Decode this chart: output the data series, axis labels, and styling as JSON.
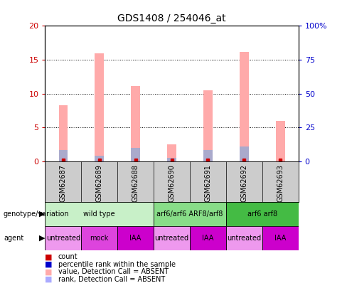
{
  "title": "GDS1408 / 254046_at",
  "samples": [
    "GSM62687",
    "GSM62689",
    "GSM62688",
    "GSM62690",
    "GSM62691",
    "GSM62692",
    "GSM62693"
  ],
  "pink_bars": [
    8.3,
    16.0,
    11.1,
    2.5,
    10.5,
    16.2,
    6.0
  ],
  "blue_bars": [
    1.7,
    0.8,
    2.0,
    0.5,
    1.7,
    2.2,
    0.0
  ],
  "red_dots": [
    0.15,
    0.15,
    0.15,
    0.15,
    0.15,
    0.15,
    0.15
  ],
  "ylim_left": [
    0,
    20
  ],
  "ylim_right": [
    0,
    100
  ],
  "yticks_left": [
    0,
    5,
    10,
    15,
    20
  ],
  "yticks_right": [
    0,
    25,
    50,
    75,
    100
  ],
  "ytick_labels_left": [
    "0",
    "5",
    "10",
    "15",
    "20"
  ],
  "ytick_labels_right": [
    "0",
    "25",
    "50",
    "75",
    "100%"
  ],
  "genotype_groups": [
    {
      "label": "wild type",
      "start": 0,
      "end": 3,
      "color": "#c8f0c8"
    },
    {
      "label": "arf6/arf6 ARF8/arf8",
      "start": 3,
      "end": 5,
      "color": "#88dd88"
    },
    {
      "label": "arf6 arf8",
      "start": 5,
      "end": 7,
      "color": "#44bb44"
    }
  ],
  "agent_groups": [
    {
      "label": "untreated",
      "start": 0,
      "end": 1,
      "color": "#ee99ee"
    },
    {
      "label": "mock",
      "start": 1,
      "end": 2,
      "color": "#dd44dd"
    },
    {
      "label": "IAA",
      "start": 2,
      "end": 3,
      "color": "#cc00cc"
    },
    {
      "label": "untreated",
      "start": 3,
      "end": 4,
      "color": "#ee99ee"
    },
    {
      "label": "IAA",
      "start": 4,
      "end": 5,
      "color": "#cc00cc"
    },
    {
      "label": "untreated",
      "start": 5,
      "end": 6,
      "color": "#ee99ee"
    },
    {
      "label": "IAA",
      "start": 6,
      "end": 7,
      "color": "#cc00cc"
    }
  ],
  "legend_items": [
    {
      "label": "count",
      "color": "#cc0000"
    },
    {
      "label": "percentile rank within the sample",
      "color": "#0000cc"
    },
    {
      "label": "value, Detection Call = ABSENT",
      "color": "#ffaaaa"
    },
    {
      "label": "rank, Detection Call = ABSENT",
      "color": "#aaaaff"
    }
  ],
  "bar_width": 0.25,
  "pink_color": "#ffaaaa",
  "blue_color": "#aaaacc",
  "red_color": "#cc0000",
  "left_axis_color": "#cc0000",
  "right_axis_color": "#0000cc",
  "bg_color": "#ffffff",
  "sample_bg_color": "#cccccc",
  "border_color": "#000000"
}
